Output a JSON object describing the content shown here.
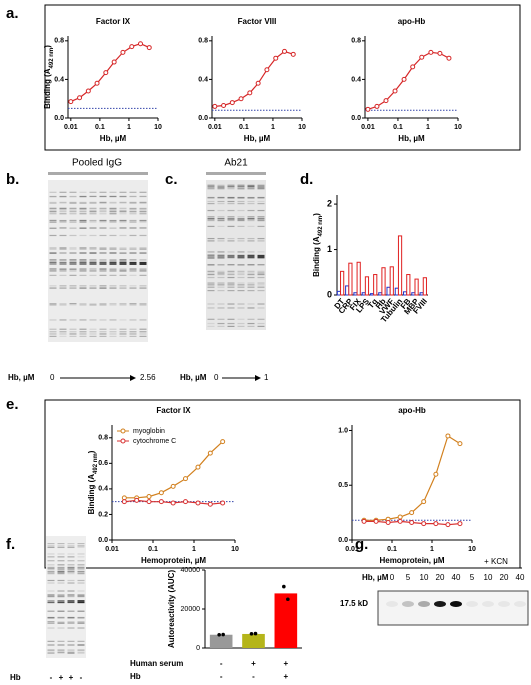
{
  "panel_labels": [
    "a.",
    "b.",
    "c.",
    "d.",
    "e.",
    "f.",
    "g."
  ],
  "gels": {
    "b": {
      "title": "Pooled IgG",
      "axis": "Hb, µM",
      "start": "0",
      "end": "2.56"
    },
    "c": {
      "title": "Ab21",
      "axis": "Hb, µM",
      "start": "0",
      "end": "1"
    },
    "f": {
      "axis": "Hb",
      "lanes": [
        "-",
        "+",
        "+",
        "-"
      ]
    },
    "g": {
      "axis": "Hb, µM",
      "lanes": [
        "0",
        "5",
        "10",
        "20",
        "40",
        "5",
        "10",
        "20",
        "40"
      ],
      "group": "+ KCN",
      "band": "17.5 kD"
    }
  },
  "chart_data": [
    {
      "type": "line",
      "title": "Factor IX",
      "xlabel": "Hb, µM",
      "ylabel": [
        "Binding (A",
        "492 nm",
        ")"
      ],
      "xscale": "log",
      "x": [
        0.01,
        0.02,
        0.04,
        0.08,
        0.16,
        0.31,
        0.62,
        1.25,
        2.5,
        5
      ],
      "series": [
        {
          "color": "#d62728",
          "values": [
            0.17,
            0.21,
            0.28,
            0.36,
            0.47,
            0.58,
            0.68,
            0.74,
            0.77,
            0.73
          ]
        }
      ],
      "baseline": 0.1,
      "xlim": [
        0.008,
        10
      ],
      "ylim": [
        0,
        0.85
      ],
      "xticks": [
        0.01,
        0.1,
        1,
        10
      ],
      "yticks": [
        {
          "value": 0,
          "label": "0.0"
        },
        0.4,
        0.8
      ]
    },
    {
      "type": "line",
      "title": "Factor VIII",
      "xlabel": "Hb, µM",
      "xscale": "log",
      "x": [
        0.01,
        0.02,
        0.04,
        0.08,
        0.16,
        0.31,
        0.62,
        1.25,
        2.5,
        5
      ],
      "series": [
        {
          "color": "#d62728",
          "values": [
            0.12,
            0.13,
            0.16,
            0.2,
            0.26,
            0.36,
            0.5,
            0.62,
            0.69,
            0.66
          ]
        }
      ],
      "baseline": 0.08,
      "xlim": [
        0.008,
        10
      ],
      "ylim": [
        0,
        0.85
      ],
      "xticks": [
        0.01,
        0.1,
        1,
        10
      ],
      "yticks": [
        {
          "value": 0,
          "label": "0.0"
        },
        0.4,
        0.8
      ]
    },
    {
      "type": "line",
      "title": "apo-Hb",
      "xlabel": "Hb, µM",
      "xscale": "log",
      "x": [
        0.01,
        0.02,
        0.04,
        0.08,
        0.16,
        0.31,
        0.62,
        1.25,
        2.5,
        5
      ],
      "series": [
        {
          "color": "#d62728",
          "values": [
            0.09,
            0.12,
            0.18,
            0.28,
            0.4,
            0.53,
            0.63,
            0.68,
            0.67,
            0.62
          ]
        }
      ],
      "baseline": 0.08,
      "xlim": [
        0.008,
        10
      ],
      "ylim": [
        0,
        0.85
      ],
      "xticks": [
        0.01,
        0.1,
        1,
        10
      ],
      "yticks": [
        {
          "value": 0,
          "label": "0.0"
        },
        0.4,
        0.8
      ]
    },
    {
      "type": "bar",
      "ylabel": [
        "Binding (A",
        "492 nm",
        ")"
      ],
      "categories": [
        "DT",
        "CRP",
        "FIX",
        "LPS",
        "Tg",
        "Hb",
        "VWF",
        "Tubulin",
        "FB",
        "MBP",
        "FVIII"
      ],
      "series": [
        {
          "color": "#2233cc",
          "values": [
            0.08,
            0.2,
            0.05,
            0.05,
            0.03,
            0.05,
            0.17,
            0.15,
            0.07,
            0.05,
            0.05
          ]
        },
        {
          "color": "#e02020",
          "values": [
            0.52,
            0.7,
            0.72,
            0.4,
            0.45,
            0.6,
            0.62,
            1.3,
            0.45,
            0.35,
            0.38
          ]
        }
      ],
      "ylim": [
        0,
        2.2
      ],
      "yticks": [
        0,
        1,
        2
      ]
    },
    {
      "type": "line",
      "title": "Factor IX",
      "xlabel": "Hemoprotein, µM",
      "ylabel": [
        "Binding (A",
        "492 nm",
        ")"
      ],
      "xscale": "log",
      "x": [
        0.02,
        0.04,
        0.08,
        0.16,
        0.31,
        0.62,
        1.25,
        2.5,
        5
      ],
      "series": [
        {
          "name": "myoglobin",
          "color": "#d2801e",
          "values": [
            0.33,
            0.33,
            0.34,
            0.37,
            0.42,
            0.48,
            0.57,
            0.68,
            0.77
          ]
        },
        {
          "name": "cytochrome C",
          "color": "#d83030",
          "values": [
            0.3,
            0.31,
            0.3,
            0.3,
            0.29,
            0.3,
            0.29,
            0.28,
            0.29
          ]
        }
      ],
      "legend": "upper left",
      "baseline": 0.3,
      "xlim": [
        0.01,
        10
      ],
      "ylim": [
        0,
        0.9
      ],
      "xticks": [
        0.01,
        0.1,
        1,
        10
      ],
      "yticks": [
        {
          "value": 0,
          "label": "0.0"
        },
        0.2,
        0.4,
        0.6,
        0.8
      ]
    },
    {
      "type": "line",
      "title": "apo-Hb",
      "xlabel": "Hemoprotein, µM",
      "xscale": "log",
      "x": [
        0.02,
        0.04,
        0.08,
        0.16,
        0.31,
        0.62,
        1.25,
        2.5,
        5
      ],
      "series": [
        {
          "color": "#d2801e",
          "values": [
            0.18,
            0.18,
            0.19,
            0.21,
            0.25,
            0.35,
            0.6,
            0.95,
            0.88
          ]
        },
        {
          "color": "#d83030",
          "values": [
            0.17,
            0.17,
            0.16,
            0.17,
            0.16,
            0.15,
            0.15,
            0.14,
            0.15
          ]
        }
      ],
      "baseline": 0.18,
      "xlim": [
        0.01,
        10
      ],
      "ylim": [
        0,
        1.05
      ],
      "xticks": [
        0.01,
        0.1,
        1,
        10
      ],
      "yticks": [
        {
          "value": 0,
          "label": "0.0"
        },
        0.5,
        {
          "value": 1,
          "label": "1.0"
        }
      ]
    },
    {
      "type": "bar",
      "ylabel": [
        "Autoreactivity (AUC)"
      ],
      "categories": [
        null,
        null,
        null
      ],
      "values": [
        6800,
        7200,
        28000
      ],
      "colors": [
        "#999999",
        "#b5b51a",
        "#ff0000"
      ],
      "points": [
        [
          6800,
          6900
        ],
        [
          7300,
          7400
        ],
        [
          31500,
          25000
        ]
      ],
      "ylim": [
        0,
        40000
      ],
      "yticks": [
        0,
        20000,
        40000
      ],
      "table": {
        "rows": [
          [
            "Human serum",
            "-",
            "+",
            "+"
          ],
          [
            "Hb",
            "-",
            "-",
            "+"
          ]
        ]
      }
    }
  ]
}
